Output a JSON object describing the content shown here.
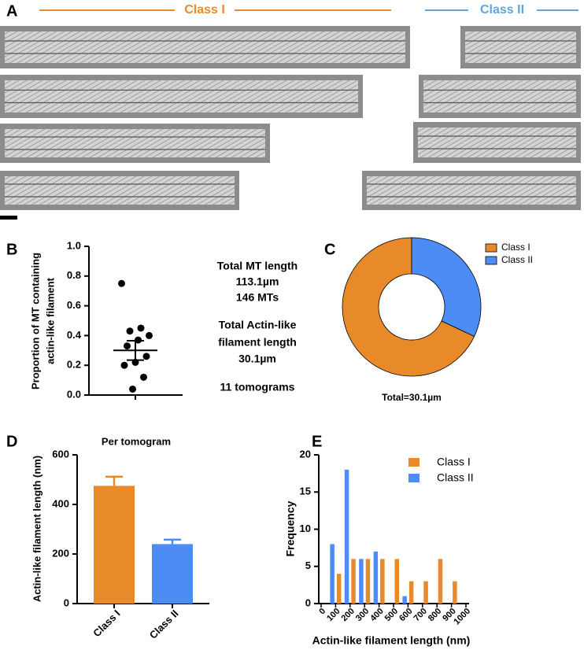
{
  "panel_a": {
    "label": "A",
    "class_1": "Class I",
    "class_2": "Class II"
  },
  "chart_data": [
    {
      "type": "strip",
      "panel_label": "B",
      "ylabel": [
        "Proportion of MT containing",
        "actin-like filament"
      ],
      "values": [
        0.75,
        0.45,
        0.43,
        0.4,
        0.37,
        0.33,
        0.26,
        0.22,
        0.2,
        0.12,
        0.04
      ],
      "mean": 0.3,
      "error": 0.065,
      "color": "#000000",
      "ylim": [
        0,
        1
      ],
      "yticks": [
        {
          "value": 0,
          "label": "0.0"
        },
        0.2,
        0.4,
        0.6,
        0.8,
        {
          "value": 1,
          "label": "1.0"
        }
      ],
      "annotations": [
        "Total MT length",
        "113.1µm",
        "146 MTs",
        "Total Actin-like",
        "filament length",
        "30.1µm",
        "11 tomograms"
      ]
    },
    {
      "type": "donut",
      "panel_label": "C",
      "categories": [
        "Class I",
        "Class II"
      ],
      "values": [
        68,
        32
      ],
      "colors": [
        "#E8892A",
        "#4E8CF5"
      ],
      "legend": "upper right",
      "total_label": "Total=30.1µm"
    },
    {
      "type": "bar",
      "panel_label": "D",
      "title": "Per tomogram",
      "ylabel": "Actin-like filament length (nm)",
      "categories": [
        "Class I",
        "Class II"
      ],
      "values": [
        475,
        240
      ],
      "errors": [
        37,
        18
      ],
      "colors": [
        "#E8892A",
        "#4E8CF5"
      ],
      "ylim": [
        0,
        600
      ],
      "yticks": [
        0,
        200,
        400,
        600
      ]
    },
    {
      "type": "grouped_bar",
      "panel_label": "E",
      "xlabel": "Actin-like filament length (nm)",
      "ylabel": "Frequency",
      "x": [
        100,
        200,
        300,
        400,
        500,
        600,
        700,
        800,
        900
      ],
      "series": [
        {
          "name": "Class I",
          "color": "#E8892A",
          "values": [
            4,
            6,
            6,
            6,
            6,
            3,
            3,
            6,
            3
          ]
        },
        {
          "name": "Class II",
          "color": "#4E8CF5",
          "values": [
            8,
            18,
            6,
            7,
            0,
            1,
            0,
            0,
            0
          ]
        }
      ],
      "xlim": [
        0,
        1000
      ],
      "xticks": [
        0,
        100,
        200,
        300,
        400,
        500,
        600,
        700,
        800,
        900,
        1000
      ],
      "ylim": [
        0,
        20
      ],
      "yticks": [
        0,
        5,
        10,
        15,
        20
      ],
      "legend": "upper right"
    }
  ]
}
